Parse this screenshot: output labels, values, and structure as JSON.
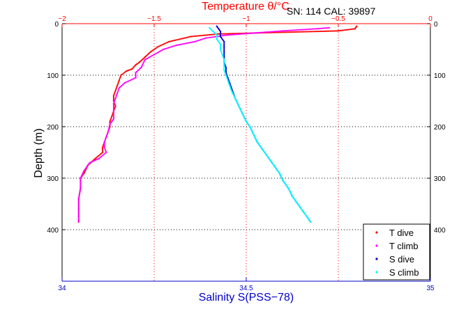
{
  "chart_data": {
    "type": "scatter",
    "title_top": "Temperature θ/°C",
    "annotation": "SN: 114  CAL: 39897",
    "ylabel": "Depth (m)",
    "xlabel_bottom": "Salinity S(PSS−78)",
    "y_axis": {
      "range": [
        0,
        500
      ],
      "reversed": true,
      "ticks": [
        0,
        100,
        200,
        300,
        400
      ],
      "tick_labels": [
        "0",
        "100",
        "200",
        "300",
        "400"
      ]
    },
    "x_top": {
      "range": [
        -2,
        0
      ],
      "ticks": [
        -2,
        -1.5,
        -1,
        -0.5,
        0
      ],
      "tick_labels": [
        "−2",
        "−1.5",
        "−1",
        "−0.5",
        "0"
      ],
      "color": "#ff0000"
    },
    "x_bottom": {
      "range": [
        34,
        35
      ],
      "ticks": [
        34,
        34.5,
        35
      ],
      "tick_labels": [
        "34",
        "34.5",
        "35"
      ],
      "color": "#0000cc"
    },
    "grid": true,
    "legend_position": "bottom-right",
    "legend": [
      {
        "label": "T dive",
        "color": "#ff0000"
      },
      {
        "label": "T climb",
        "color": "#ff00ff"
      },
      {
        "label": "S dive",
        "color": "#0000cc"
      },
      {
        "label": "S climb",
        "color": "#00ffff"
      }
    ],
    "series": [
      {
        "name": "T dive",
        "axis": "top",
        "color": "#ff0000",
        "points": [
          [
            -0.4,
            5
          ],
          [
            -0.41,
            10
          ],
          [
            -0.5,
            14
          ],
          [
            -1.15,
            20
          ],
          [
            -1.3,
            25
          ],
          [
            -1.42,
            35
          ],
          [
            -1.48,
            45
          ],
          [
            -1.52,
            55
          ],
          [
            -1.55,
            65
          ],
          [
            -1.58,
            75
          ],
          [
            -1.6,
            80
          ],
          [
            -1.62,
            88
          ],
          [
            -1.65,
            92
          ],
          [
            -1.68,
            100
          ],
          [
            -1.69,
            110
          ],
          [
            -1.7,
            120
          ],
          [
            -1.71,
            130
          ],
          [
            -1.72,
            140
          ],
          [
            -1.72,
            150
          ],
          [
            -1.71,
            160
          ],
          [
            -1.72,
            170
          ],
          [
            -1.73,
            180
          ],
          [
            -1.74,
            190
          ],
          [
            -1.74,
            200
          ],
          [
            -1.75,
            210
          ],
          [
            -1.76,
            220
          ],
          [
            -1.77,
            230
          ],
          [
            -1.78,
            240
          ],
          [
            -1.78,
            250
          ],
          [
            -1.82,
            262
          ],
          [
            -1.86,
            275
          ],
          [
            -1.88,
            290
          ],
          [
            -1.9,
            300
          ],
          [
            -1.9,
            320
          ],
          [
            -1.91,
            340
          ],
          [
            -1.91,
            360
          ],
          [
            -1.91,
            385
          ]
        ]
      },
      {
        "name": "T climb",
        "axis": "top",
        "color": "#ff00ff",
        "points": [
          [
            -1.91,
            385
          ],
          [
            -1.91,
            360
          ],
          [
            -1.91,
            340
          ],
          [
            -1.9,
            320
          ],
          [
            -1.9,
            300
          ],
          [
            -1.88,
            285
          ],
          [
            -1.85,
            270
          ],
          [
            -1.8,
            262
          ],
          [
            -1.76,
            250
          ],
          [
            -1.77,
            240
          ],
          [
            -1.77,
            230
          ],
          [
            -1.76,
            220
          ],
          [
            -1.75,
            210
          ],
          [
            -1.74,
            195
          ],
          [
            -1.72,
            185
          ],
          [
            -1.72,
            170
          ],
          [
            -1.72,
            155
          ],
          [
            -1.71,
            145
          ],
          [
            -1.7,
            135
          ],
          [
            -1.69,
            125
          ],
          [
            -1.66,
            115
          ],
          [
            -1.6,
            105
          ],
          [
            -1.6,
            95
          ],
          [
            -1.57,
            85
          ],
          [
            -1.55,
            70
          ],
          [
            -1.5,
            60
          ],
          [
            -1.45,
            50
          ],
          [
            -1.38,
            42
          ],
          [
            -1.28,
            35
          ],
          [
            -1.22,
            28
          ],
          [
            -1.1,
            22
          ],
          [
            -0.95,
            18
          ],
          [
            -0.8,
            14
          ],
          [
            -0.62,
            10
          ],
          [
            -0.55,
            8
          ]
        ]
      },
      {
        "name": "S dive",
        "axis": "bottom",
        "color": "#0000cc",
        "points": [
          [
            34.42,
            5
          ],
          [
            34.43,
            15
          ],
          [
            34.43,
            25
          ],
          [
            34.44,
            35
          ],
          [
            34.44,
            45
          ],
          [
            34.44,
            55
          ],
          [
            34.44,
            65
          ],
          [
            34.44,
            75
          ],
          [
            34.445,
            85
          ],
          [
            34.445,
            95
          ],
          [
            34.45,
            105
          ],
          [
            34.455,
            115
          ],
          [
            34.46,
            125
          ],
          [
            34.465,
            135
          ],
          [
            34.47,
            145
          ],
          [
            34.48,
            160
          ],
          [
            34.49,
            175
          ],
          [
            34.5,
            190
          ],
          [
            34.51,
            200
          ],
          [
            34.52,
            215
          ],
          [
            34.53,
            230
          ],
          [
            34.545,
            245
          ],
          [
            34.56,
            260
          ],
          [
            34.575,
            275
          ],
          [
            34.59,
            290
          ],
          [
            34.6,
            305
          ],
          [
            34.615,
            320
          ],
          [
            34.625,
            335
          ],
          [
            34.64,
            350
          ],
          [
            34.655,
            365
          ],
          [
            34.665,
            375
          ],
          [
            34.675,
            385
          ]
        ]
      },
      {
        "name": "S climb",
        "axis": "bottom",
        "color": "#00ffff",
        "points": [
          [
            34.675,
            385
          ],
          [
            34.665,
            375
          ],
          [
            34.655,
            365
          ],
          [
            34.64,
            350
          ],
          [
            34.625,
            335
          ],
          [
            34.615,
            320
          ],
          [
            34.6,
            305
          ],
          [
            34.59,
            290
          ],
          [
            34.575,
            275
          ],
          [
            34.56,
            260
          ],
          [
            34.545,
            245
          ],
          [
            34.53,
            230
          ],
          [
            34.52,
            215
          ],
          [
            34.51,
            200
          ],
          [
            34.5,
            190
          ],
          [
            34.49,
            175
          ],
          [
            34.48,
            160
          ],
          [
            34.47,
            145
          ],
          [
            34.46,
            130
          ],
          [
            34.455,
            120
          ],
          [
            34.45,
            110
          ],
          [
            34.445,
            100
          ],
          [
            34.44,
            90
          ],
          [
            34.44,
            80
          ],
          [
            34.44,
            70
          ],
          [
            34.435,
            60
          ],
          [
            34.43,
            50
          ],
          [
            34.43,
            40
          ],
          [
            34.42,
            30
          ],
          [
            34.42,
            22
          ],
          [
            34.41,
            15
          ],
          [
            34.4,
            8
          ]
        ]
      }
    ]
  }
}
